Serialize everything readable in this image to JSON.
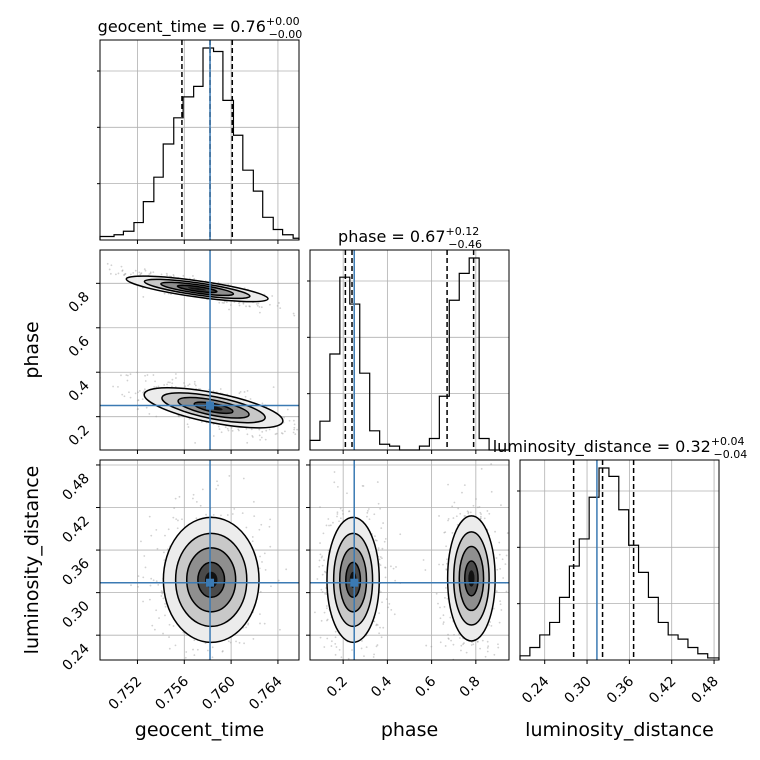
{
  "chart_data": {
    "type": "corner",
    "parameters": [
      "geocent_time",
      "phase",
      "luminosity_distance"
    ],
    "axis_labels": {
      "geocent_time": "geocent_time",
      "phase": "phase",
      "luminosity_distance": "luminosity_distance"
    },
    "titles": [
      {
        "param": "geocent_time",
        "text": "geocent_time = 0.76",
        "sup": "+0.00",
        "sub": "−0.00"
      },
      {
        "param": "phase",
        "text": "phase = 0.67",
        "sup": "+0.12",
        "sub": "−0.46"
      },
      {
        "param": "luminosity_distance",
        "text": "luminosity_distance = 0.32",
        "sup": "+0.04",
        "sub": "−0.04"
      }
    ],
    "ranges": {
      "geocent_time": [
        0.7488,
        0.7658
      ],
      "phase": [
        0.05,
        0.95
      ],
      "luminosity_distance": [
        0.205,
        0.487
      ]
    },
    "ticks": {
      "geocent_time": {
        "values": [
          0.752,
          0.756,
          0.76,
          0.764
        ],
        "labels": [
          "0.752",
          "0.756",
          "0.760",
          "0.764"
        ]
      },
      "phase": {
        "values": [
          0.2,
          0.4,
          0.6,
          0.8
        ],
        "labels": [
          "0.2",
          "0.4",
          "0.6",
          "0.8"
        ]
      },
      "luminosity_distance": {
        "values": [
          0.24,
          0.3,
          0.36,
          0.42,
          0.48
        ],
        "labels": [
          "0.24",
          "0.30",
          "0.36",
          "0.42",
          "0.48"
        ]
      }
    },
    "truths": {
      "geocent_time": 0.7582,
      "phase": 0.25,
      "luminosity_distance": 0.314
    },
    "quantiles": {
      "geocent_time": [
        0.7558,
        0.7582,
        0.7601
      ],
      "phase": [
        0.21,
        0.24,
        0.67,
        0.79
      ],
      "luminosity_distance": [
        0.281,
        0.322,
        0.366
      ]
    },
    "histograms": {
      "geocent_time": {
        "bin_edges": [
          0.7488,
          0.75,
          0.7508,
          0.7517,
          0.7525,
          0.7534,
          0.7542,
          0.7551,
          0.7559,
          0.7568,
          0.7576,
          0.7585,
          0.7593,
          0.7602,
          0.761,
          0.7619,
          0.7627,
          0.7636,
          0.7644,
          0.7653,
          0.7658
        ],
        "counts": [
          2,
          3,
          5,
          10,
          22,
          36,
          55,
          70,
          82,
          88,
          110,
          108,
          80,
          60,
          40,
          28,
          13,
          6,
          3,
          1
        ]
      },
      "phase": {
        "bin_edges": [
          0.05,
          0.095,
          0.14,
          0.185,
          0.23,
          0.275,
          0.32,
          0.365,
          0.41,
          0.455,
          0.5,
          0.545,
          0.59,
          0.635,
          0.68,
          0.725,
          0.77,
          0.815,
          0.86,
          0.905,
          0.95
        ],
        "counts": [
          5,
          15,
          50,
          90,
          76,
          40,
          10,
          3,
          2,
          0,
          0,
          2,
          6,
          28,
          78,
          92,
          100,
          6,
          0,
          0
        ]
      },
      "luminosity_distance": {
        "bin_edges": [
          0.205,
          0.219,
          0.233,
          0.247,
          0.261,
          0.275,
          0.289,
          0.303,
          0.317,
          0.331,
          0.345,
          0.359,
          0.373,
          0.387,
          0.401,
          0.415,
          0.429,
          0.443,
          0.457,
          0.471,
          0.487
        ],
        "counts": [
          2,
          6,
          12,
          18,
          30,
          45,
          58,
          78,
          92,
          88,
          72,
          55,
          42,
          30,
          18,
          12,
          10,
          6,
          3,
          1
        ]
      }
    },
    "contour_pairs": [
      {
        "x": "geocent_time",
        "y": "phase",
        "modes": [
          {
            "center": [
              0.7571,
              0.775
            ],
            "sx": 0.0022,
            "sy": 0.03,
            "rho": -0.85
          },
          {
            "center": [
              0.7585,
              0.24
            ],
            "sx": 0.0023,
            "sy": 0.045,
            "rho": -0.65
          }
        ]
      },
      {
        "x": "geocent_time",
        "y": "luminosity_distance",
        "modes": [
          {
            "center": [
              0.7583,
              0.318
            ],
            "sx": 0.0019,
            "sy": 0.041,
            "rho": 0.0
          }
        ]
      },
      {
        "x": "phase",
        "y": "luminosity_distance",
        "modes": [
          {
            "center": [
              0.245,
              0.318
            ],
            "sx": 0.055,
            "sy": 0.041,
            "rho": 0.0
          },
          {
            "center": [
              0.78,
              0.32
            ],
            "sx": 0.05,
            "sy": 0.041,
            "rho": 0.0
          }
        ]
      }
    ],
    "grid": true,
    "colors": {
      "truth": "#3b7ab3",
      "hist": "#000000",
      "contour": "#000000",
      "grid": "#b0b0b0",
      "samples": "#9a9a9a"
    }
  }
}
